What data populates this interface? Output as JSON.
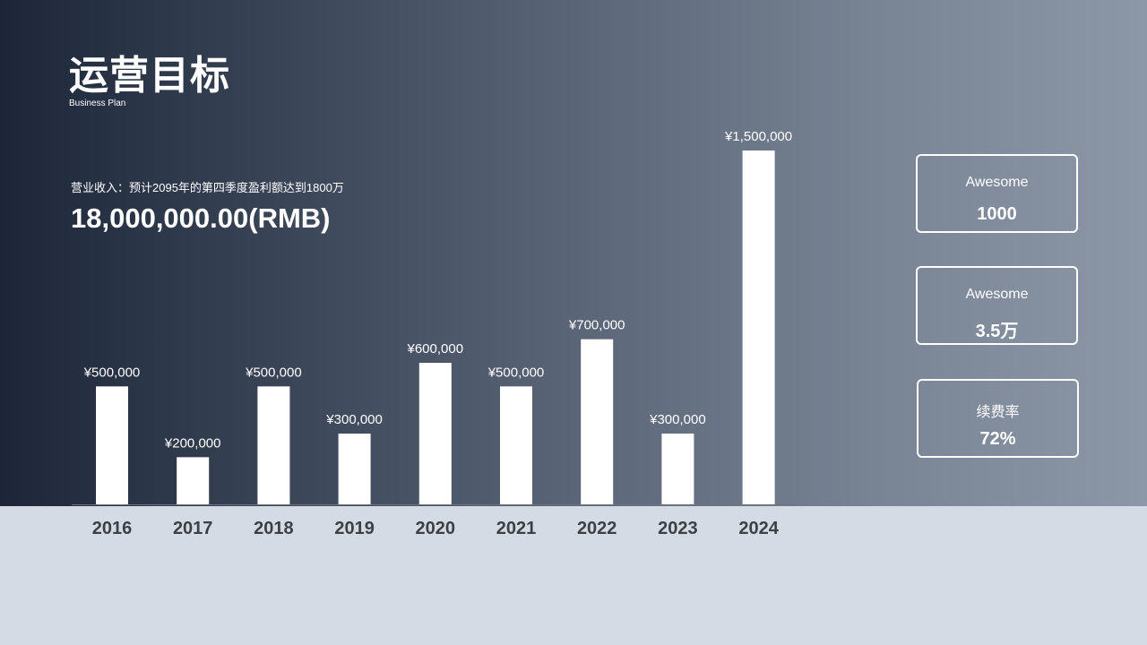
{
  "header": {
    "title": "运营目标",
    "subtitle": "Business Plan"
  },
  "revenue": {
    "description": "营业收入：预计2095年的第四季度盈利额达到1800万",
    "amount": "18,000,000.00(RMB)"
  },
  "stats": [
    {
      "label": "Awesome",
      "value": "1000"
    },
    {
      "label": "Awesome",
      "value": "3.5万"
    },
    {
      "label": "续费率",
      "value": "72%"
    }
  ],
  "colors": {
    "bar": "#ffffff",
    "tick_label": "#3c3f44",
    "hero_start": "#1c2638",
    "hero_end": "#8c97a7",
    "page_bg": "#d5dbe5"
  },
  "chart_data": {
    "type": "bar",
    "categories": [
      "2016",
      "2017",
      "2018",
      "2019",
      "2020",
      "2021",
      "2022",
      "2023",
      "2024"
    ],
    "values": [
      500000,
      200000,
      500000,
      300000,
      600000,
      500000,
      700000,
      300000,
      1500000
    ],
    "data_labels": [
      "¥500,000",
      "¥200,000",
      "¥500,000",
      "¥300,000",
      "¥600,000",
      "¥500,000",
      "¥700,000",
      "¥300,000",
      "¥1,500,000"
    ],
    "title": "",
    "xlabel": "",
    "ylabel": "",
    "ylim": [
      0,
      1500000
    ],
    "grid": false,
    "legend": "none"
  }
}
